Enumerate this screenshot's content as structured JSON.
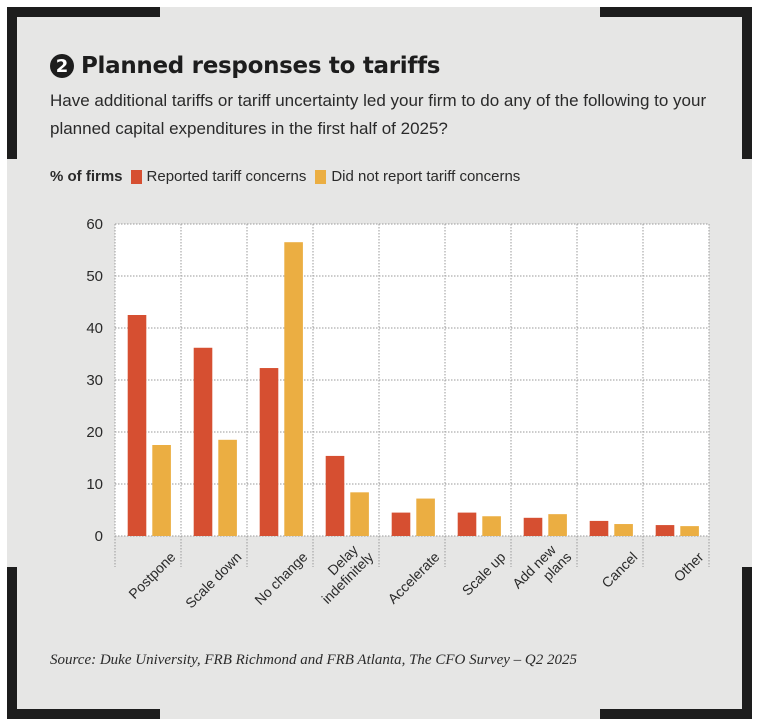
{
  "header": {
    "badge_number": "2",
    "title": "Planned responses to tariffs",
    "subtitle": "Have additional tariffs or tariff uncertainty led your firm to do any of the following to your planned capital expenditures in the first half of 2025?"
  },
  "legend": {
    "unit_label": "% of firms",
    "items": [
      {
        "label": "Reported tariff concerns",
        "color": "#d64f31"
      },
      {
        "label": "Did not report tariff concerns",
        "color": "#ebae42"
      }
    ]
  },
  "source": "Source: Duke University, FRB Richmond and FRB Atlanta, The CFO Survey – Q2 2025",
  "colors": {
    "background": "#e6e6e5",
    "plot_background": "#ffffff",
    "frame": "#1d1d1d",
    "grid": "#9a9a9a"
  },
  "chart_data": {
    "type": "bar",
    "title": "Planned responses to tariffs",
    "xlabel": "",
    "ylabel": "% of firms",
    "ylim": [
      0,
      60
    ],
    "yticks": [
      0,
      10,
      20,
      30,
      40,
      50,
      60
    ],
    "grid": true,
    "legend_position": "top-left",
    "categories": [
      [
        "Postpone"
      ],
      [
        "Scale down"
      ],
      [
        "No change"
      ],
      [
        "Delay",
        "indefinitely"
      ],
      [
        "Accelerate"
      ],
      [
        "Scale up"
      ],
      [
        "Add new",
        "plans"
      ],
      [
        "Cancel"
      ],
      [
        "Other"
      ]
    ],
    "series": [
      {
        "name": "Reported tariff concerns",
        "color": "#d64f31",
        "values": [
          42.5,
          36.2,
          32.3,
          15.4,
          4.5,
          4.5,
          3.5,
          2.9,
          2.1
        ]
      },
      {
        "name": "Did not report tariff concerns",
        "color": "#ebae42",
        "values": [
          17.5,
          18.5,
          56.5,
          8.4,
          7.2,
          3.8,
          4.2,
          2.3,
          1.9
        ]
      }
    ]
  }
}
